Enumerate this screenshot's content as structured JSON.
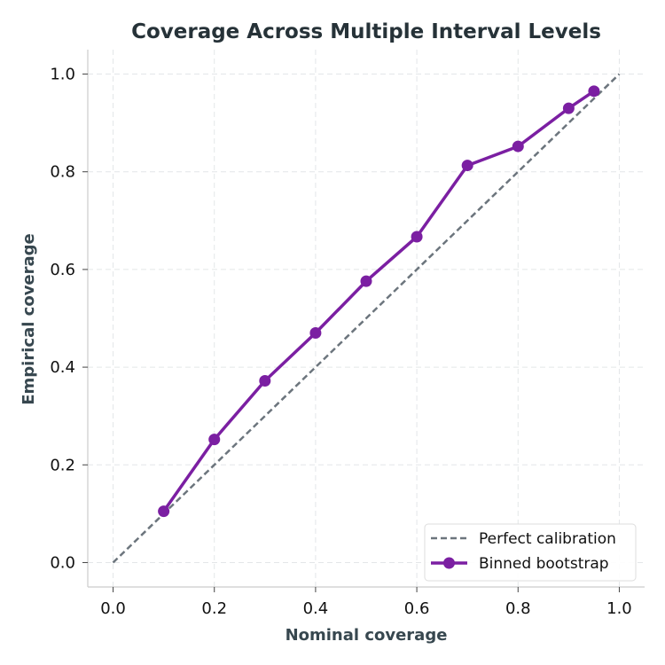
{
  "chart_data": {
    "type": "line",
    "title": "Coverage Across Multiple Interval Levels",
    "xlabel": "Nominal coverage",
    "ylabel": "Empirical coverage",
    "xlim": [
      -0.05,
      1.05
    ],
    "ylim": [
      -0.05,
      1.05
    ],
    "xticks": [
      "0.0",
      "0.2",
      "0.4",
      "0.6",
      "0.8",
      "1.0"
    ],
    "yticks": [
      "0.0",
      "0.2",
      "0.4",
      "0.6",
      "0.8",
      "1.0"
    ],
    "grid": true,
    "legend_position": "bottom-right",
    "series": [
      {
        "name": "Perfect calibration",
        "style": "dashed",
        "color": "#6c757d",
        "x": [
          0.0,
          1.0
        ],
        "y": [
          0.0,
          1.0
        ]
      },
      {
        "name": "Binned bootstrap",
        "style": "solid-markers",
        "color": "#7b1fa2",
        "x": [
          0.1,
          0.2,
          0.3,
          0.4,
          0.5,
          0.6,
          0.7,
          0.8,
          0.9,
          0.95
        ],
        "y": [
          0.105,
          0.252,
          0.372,
          0.47,
          0.576,
          0.667,
          0.813,
          0.852,
          0.93,
          0.965
        ]
      }
    ]
  }
}
